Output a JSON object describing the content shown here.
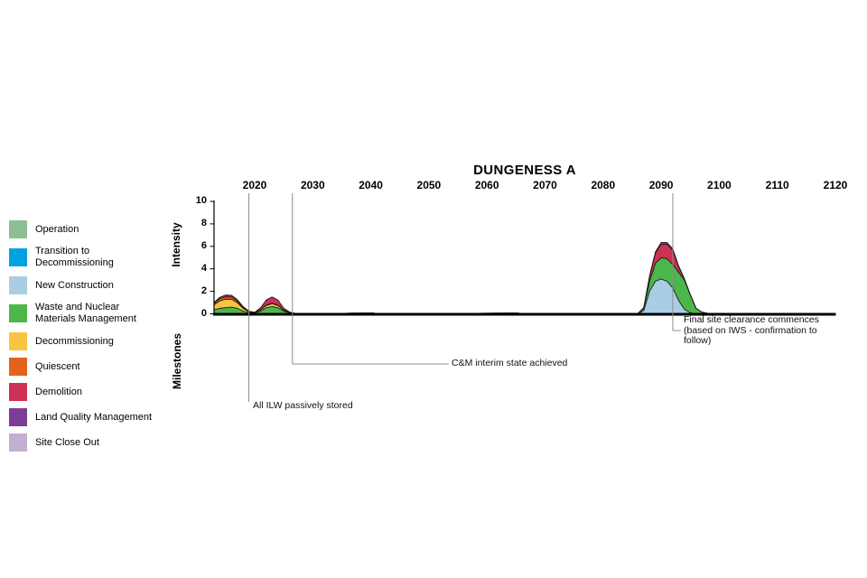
{
  "chart_data": {
    "type": "area",
    "stacked": true,
    "title": "DUNGENESS A",
    "xlabel": "",
    "ylabel": "Intensity",
    "secondary_ylabel": "Milestones",
    "xlim": [
      2013,
      2120
    ],
    "ylim": [
      0,
      10
    ],
    "grid": false,
    "legend_position": "left",
    "x_ticks": [
      2020,
      2030,
      2040,
      2050,
      2060,
      2070,
      2080,
      2090,
      2100,
      2110,
      2120
    ],
    "y_ticks": [
      0,
      2,
      4,
      6,
      8,
      10
    ],
    "x": [
      2013,
      2014,
      2015,
      2016,
      2017,
      2018,
      2019,
      2020,
      2021,
      2022,
      2023,
      2024,
      2025,
      2026,
      2027,
      2035,
      2040,
      2041,
      2055,
      2065,
      2066,
      2080,
      2086,
      2087,
      2088,
      2089,
      2090,
      2091,
      2092,
      2093,
      2094,
      2095,
      2096,
      2097,
      2098,
      2100,
      2120
    ],
    "series": [
      {
        "key": "new_construction",
        "name": "New Construction",
        "values": [
          0,
          0,
          0,
          0,
          0,
          0,
          0,
          0,
          0,
          0,
          0,
          0,
          0,
          0,
          0,
          0,
          0,
          0,
          0,
          0,
          0,
          0,
          0,
          0.3,
          2.0,
          2.9,
          3.1,
          2.9,
          2.3,
          1.2,
          0.4,
          0.1,
          0,
          0,
          0,
          0,
          0
        ]
      },
      {
        "key": "waste",
        "name": "Waste and Nuclear Materials Management",
        "values": [
          0.35,
          0.5,
          0.55,
          0.6,
          0.5,
          0.25,
          0.1,
          0.08,
          0.25,
          0.55,
          0.65,
          0.55,
          0.25,
          0.08,
          0.04,
          0.04,
          0.08,
          0.04,
          0.04,
          0.07,
          0.04,
          0.04,
          0.04,
          0.2,
          0.9,
          1.6,
          1.9,
          2.0,
          2.1,
          2.5,
          2.6,
          1.6,
          0.5,
          0.15,
          0.05,
          0,
          0
        ]
      },
      {
        "key": "decommissioning",
        "name": "Decommissioning",
        "values": [
          0.45,
          0.65,
          0.75,
          0.7,
          0.5,
          0.25,
          0.08,
          0.04,
          0.1,
          0.2,
          0.25,
          0.2,
          0.08,
          0.03,
          0,
          0,
          0,
          0,
          0,
          0,
          0,
          0,
          0,
          0,
          0,
          0,
          0,
          0,
          0,
          0,
          0,
          0,
          0,
          0,
          0,
          0,
          0
        ]
      },
      {
        "key": "quiescent",
        "name": "Quiescent",
        "values": [
          0.12,
          0.2,
          0.22,
          0.2,
          0.15,
          0.08,
          0.03,
          0.01,
          0.02,
          0.04,
          0.04,
          0.03,
          0.02,
          0.01,
          0,
          0,
          0,
          0,
          0,
          0,
          0,
          0,
          0,
          0,
          0,
          0,
          0,
          0,
          0,
          0,
          0,
          0,
          0,
          0,
          0,
          0,
          0
        ]
      },
      {
        "key": "demolition",
        "name": "Demolition",
        "values": [
          0.08,
          0.12,
          0.15,
          0.15,
          0.12,
          0.06,
          0.02,
          0.01,
          0.15,
          0.45,
          0.55,
          0.45,
          0.15,
          0.04,
          0,
          0,
          0,
          0,
          0,
          0,
          0,
          0,
          0,
          0.05,
          0.4,
          0.9,
          1.2,
          1.3,
          1.25,
          0.5,
          0.1,
          0.02,
          0,
          0,
          0,
          0,
          0
        ]
      },
      {
        "key": "land_quality",
        "name": "Land Quality Management",
        "values": [
          0,
          0,
          0,
          0,
          0,
          0,
          0,
          0,
          0,
          0,
          0,
          0,
          0,
          0,
          0,
          0,
          0,
          0,
          0,
          0,
          0,
          0,
          0,
          0.02,
          0.08,
          0.12,
          0.15,
          0.15,
          0.13,
          0.08,
          0.04,
          0.01,
          0,
          0,
          0,
          0,
          0
        ]
      }
    ],
    "milestones": [
      {
        "year": 2019,
        "label": "All ILW passively stored"
      },
      {
        "year": 2026.5,
        "label": "C&M interim state achieved"
      },
      {
        "year": 2092,
        "label": "Final site clearance commences\n(based on IWS - confirmation to\nfollow)"
      }
    ]
  },
  "legend": {
    "items": [
      {
        "key": "operation",
        "label": "Operation",
        "color": "#8CBD93"
      },
      {
        "key": "transition",
        "label": "Transition to\nDecommissioning",
        "color": "#00A2E0"
      },
      {
        "key": "new_construction",
        "label": "New Construction",
        "color": "#A9CEE4"
      },
      {
        "key": "waste",
        "label": "Waste and Nuclear\nMaterials Management",
        "color": "#4BB649"
      },
      {
        "key": "decommissioning",
        "label": "Decommissioning",
        "color": "#F9C440"
      },
      {
        "key": "quiescent",
        "label": "Quiescent",
        "color": "#E4621D"
      },
      {
        "key": "demolition",
        "label": "Demolition",
        "color": "#CE3155"
      },
      {
        "key": "land_quality",
        "label": "Land Quality Management",
        "color": "#7C3D96"
      },
      {
        "key": "site_close_out",
        "label": "Site Close Out",
        "color": "#C4AFD1"
      }
    ]
  }
}
